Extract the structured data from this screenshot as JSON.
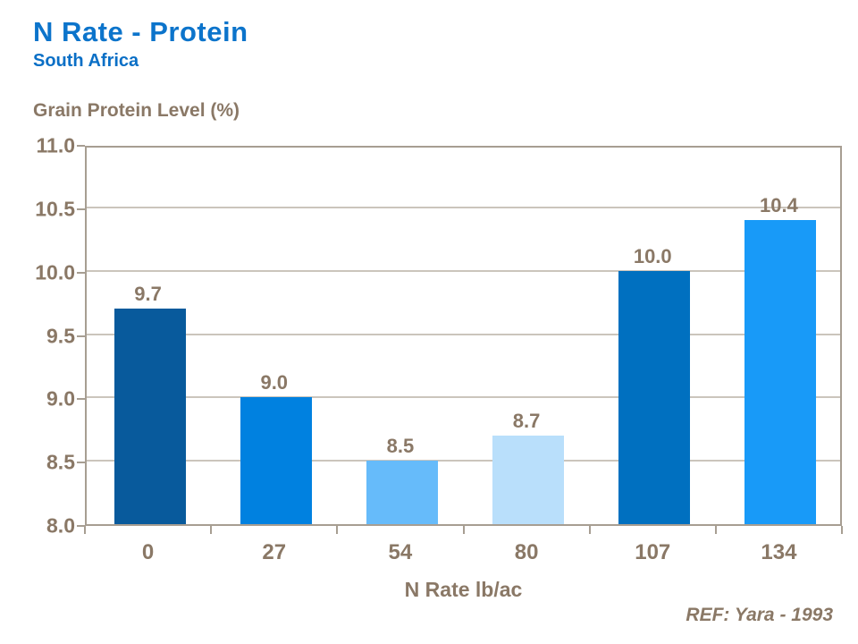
{
  "header": {
    "title": "N Rate - Protein",
    "subtitle": "South Africa"
  },
  "chart_data": {
    "type": "bar",
    "title": "N Rate - Protein",
    "subtitle": "South Africa",
    "ylabel": "Grain Protein Level (%)",
    "xlabel": "N Rate lb/ac",
    "categories": [
      "0",
      "27",
      "54",
      "80",
      "107",
      "134"
    ],
    "values": [
      9.7,
      9.0,
      8.5,
      8.7,
      10.0,
      10.4
    ],
    "value_labels": [
      "9.7",
      "9.0",
      "8.5",
      "8.7",
      "10.0",
      "10.4"
    ],
    "bar_colors": [
      "#085A9C",
      "#0081E0",
      "#66BBFA",
      "#B9DFFB",
      "#0070C0",
      "#189AF8"
    ],
    "ylim": [
      8.0,
      11.0
    ],
    "ytick_step": 0.5,
    "ytick_labels": [
      "8.0",
      "8.5",
      "9.0",
      "9.5",
      "10.0",
      "10.5",
      "11.0"
    ],
    "grid": true,
    "legend": false
  },
  "footer": {
    "ref": "REF: Yara - 1993"
  },
  "colors": {
    "background": "#FFFFFF",
    "title": "#0C74CB",
    "subtitle": "#0A6FC6",
    "text": "#8A7866",
    "axis_border": "#A79E92",
    "gridline": "#CBC5BC"
  }
}
